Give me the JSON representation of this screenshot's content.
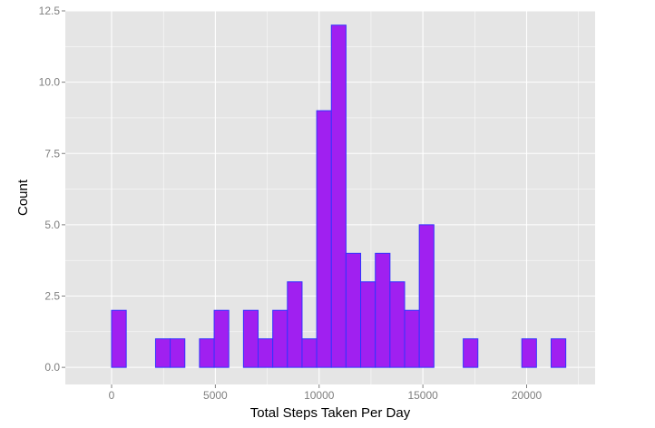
{
  "chart_data": {
    "type": "bar",
    "xlabel": "Total Steps Taken Per Day",
    "ylabel": "Count",
    "xlim": [
      -2230,
      23300
    ],
    "ylim": [
      -0.6,
      12.5
    ],
    "grid": true,
    "background": "#e5e5e5",
    "grid_color": "#ffffff",
    "bar_fill": "#a020f0",
    "bar_stroke": "#3333ff",
    "x_ticks": [
      0,
      5000,
      10000,
      15000,
      20000
    ],
    "x_tick_labels": [
      "0",
      "5000",
      "10000",
      "15000",
      "20000"
    ],
    "y_ticks": [
      0,
      2.5,
      5,
      7.5,
      10,
      12.5
    ],
    "y_tick_labels": [
      "0.0",
      "2.5",
      "5.0",
      "7.5",
      "10.0",
      "12.5"
    ],
    "bin_width": 706,
    "bin_starts": [
      -706,
      0,
      706,
      1412,
      2118,
      2824,
      3530,
      4236,
      4942,
      5648,
      6354,
      7060,
      7766,
      8472,
      9178,
      9884,
      10590,
      11296,
      12002,
      12708,
      13414,
      14120,
      14826,
      15532,
      16238,
      16944,
      17650,
      18356,
      19062,
      19768,
      20474,
      21180,
      21886
    ],
    "values": [
      0,
      2,
      0,
      0,
      1,
      1,
      0,
      1,
      2,
      0,
      2,
      1,
      2,
      3,
      1,
      9,
      12,
      4,
      3,
      4,
      3,
      2,
      5,
      0,
      0,
      1,
      0,
      0,
      0,
      1,
      0,
      1,
      0
    ]
  }
}
